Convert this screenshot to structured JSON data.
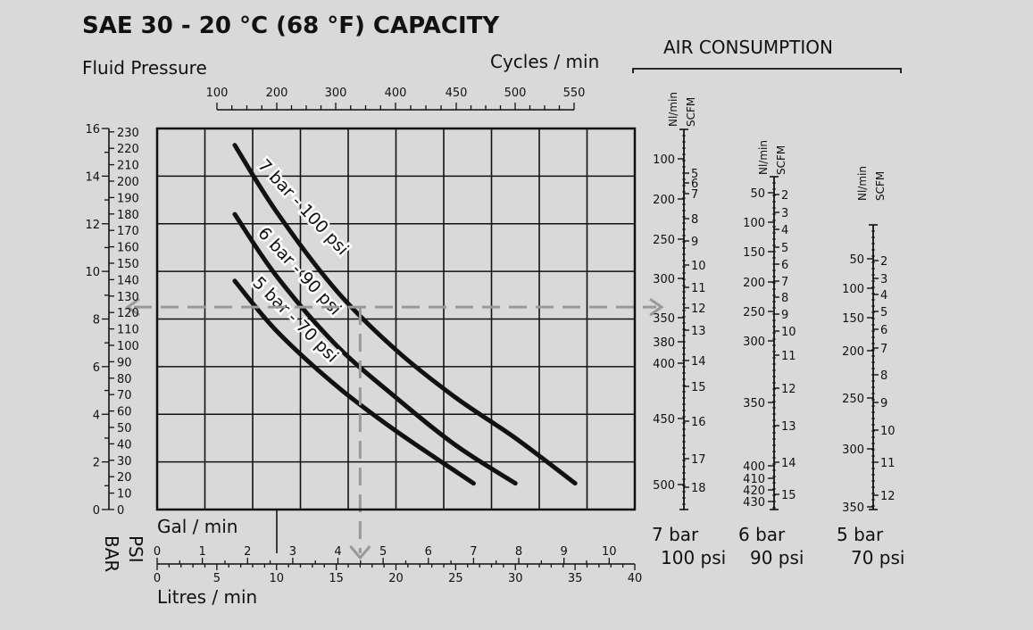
{
  "chart_data": {
    "type": "line",
    "title": "SAE 30 - 20 °C (68 °F) CAPACITY",
    "ylabel": "Fluid Pressure",
    "y_units": [
      "BAR",
      "PSI"
    ],
    "bar_ticks": [
      0,
      2,
      4,
      6,
      8,
      10,
      12,
      14,
      16
    ],
    "psi_ticks": [
      0,
      10,
      20,
      30,
      40,
      50,
      60,
      70,
      80,
      90,
      100,
      110,
      120,
      130,
      140,
      150,
      160,
      170,
      180,
      190,
      200,
      210,
      220,
      230
    ],
    "ylim_bar": [
      0,
      16
    ],
    "x_label_top": "Cycles / min",
    "cycles_ticks": [
      100,
      200,
      300,
      400,
      450,
      500,
      550
    ],
    "xlabel_gal": "Gal / min",
    "gal_ticks": [
      0,
      1,
      2,
      3,
      4,
      5,
      6,
      7,
      8,
      9,
      10
    ],
    "xlabel_lpm": "Litres / min",
    "lpm_ticks": [
      0,
      5,
      10,
      15,
      20,
      25,
      30,
      35,
      40
    ],
    "xlim_lpm": [
      0,
      40
    ],
    "grid": true,
    "series": [
      {
        "name": "7 bar - 100 psi",
        "x": [
          6.5,
          10,
          15,
          20,
          25,
          30,
          35
        ],
        "y": [
          15.3,
          12.5,
          9.2,
          6.7,
          4.7,
          3.0,
          1.1
        ]
      },
      {
        "name": "6 bar - 90 psi",
        "x": [
          6.5,
          10,
          15,
          20,
          25,
          30
        ],
        "y": [
          12.4,
          9.8,
          6.9,
          4.7,
          2.7,
          1.1
        ]
      },
      {
        "name": "5 bar - 70 psi",
        "x": [
          6.5,
          10,
          15,
          20,
          26.5
        ],
        "y": [
          9.6,
          7.5,
          5.2,
          3.3,
          1.1
        ]
      }
    ],
    "example": {
      "lpm": 17,
      "bar": 8.5
    },
    "air_consumption": {
      "title": "AIR CONSUMPTION",
      "unit_nl": "Nl/min",
      "unit_scfm": "SCFM",
      "scales": [
        {
          "name_bar": "7 bar",
          "name_psi": "100 psi",
          "nl_ticks": [
            "100",
            "200",
            "250",
            "300",
            "350",
            "380",
            "400",
            "450",
            "500"
          ],
          "scfm_ticks": [
            "5",
            "6",
            "7",
            "8",
            "9",
            "10",
            "11",
            "12",
            "13",
            "14",
            "15",
            "16",
            "17",
            "18"
          ]
        },
        {
          "name_bar": "6 bar",
          "name_psi": "90 psi",
          "nl_ticks": [
            "50",
            "100",
            "150",
            "200",
            "250",
            "300",
            "350",
            "400",
            "410",
            "420",
            "430"
          ],
          "scfm_ticks": [
            "2",
            "3",
            "4",
            "5",
            "6",
            "7",
            "8",
            "9",
            "10",
            "11",
            "12",
            "13",
            "14",
            "15"
          ]
        },
        {
          "name_bar": "5 bar",
          "name_psi": "70 psi",
          "nl_ticks": [
            "50",
            "100",
            "150",
            "200",
            "250",
            "300",
            "350"
          ],
          "scfm_ticks": [
            "2",
            "3",
            "4",
            "5",
            "6",
            "7",
            "8",
            "9",
            "10",
            "11",
            "12"
          ]
        }
      ]
    }
  }
}
